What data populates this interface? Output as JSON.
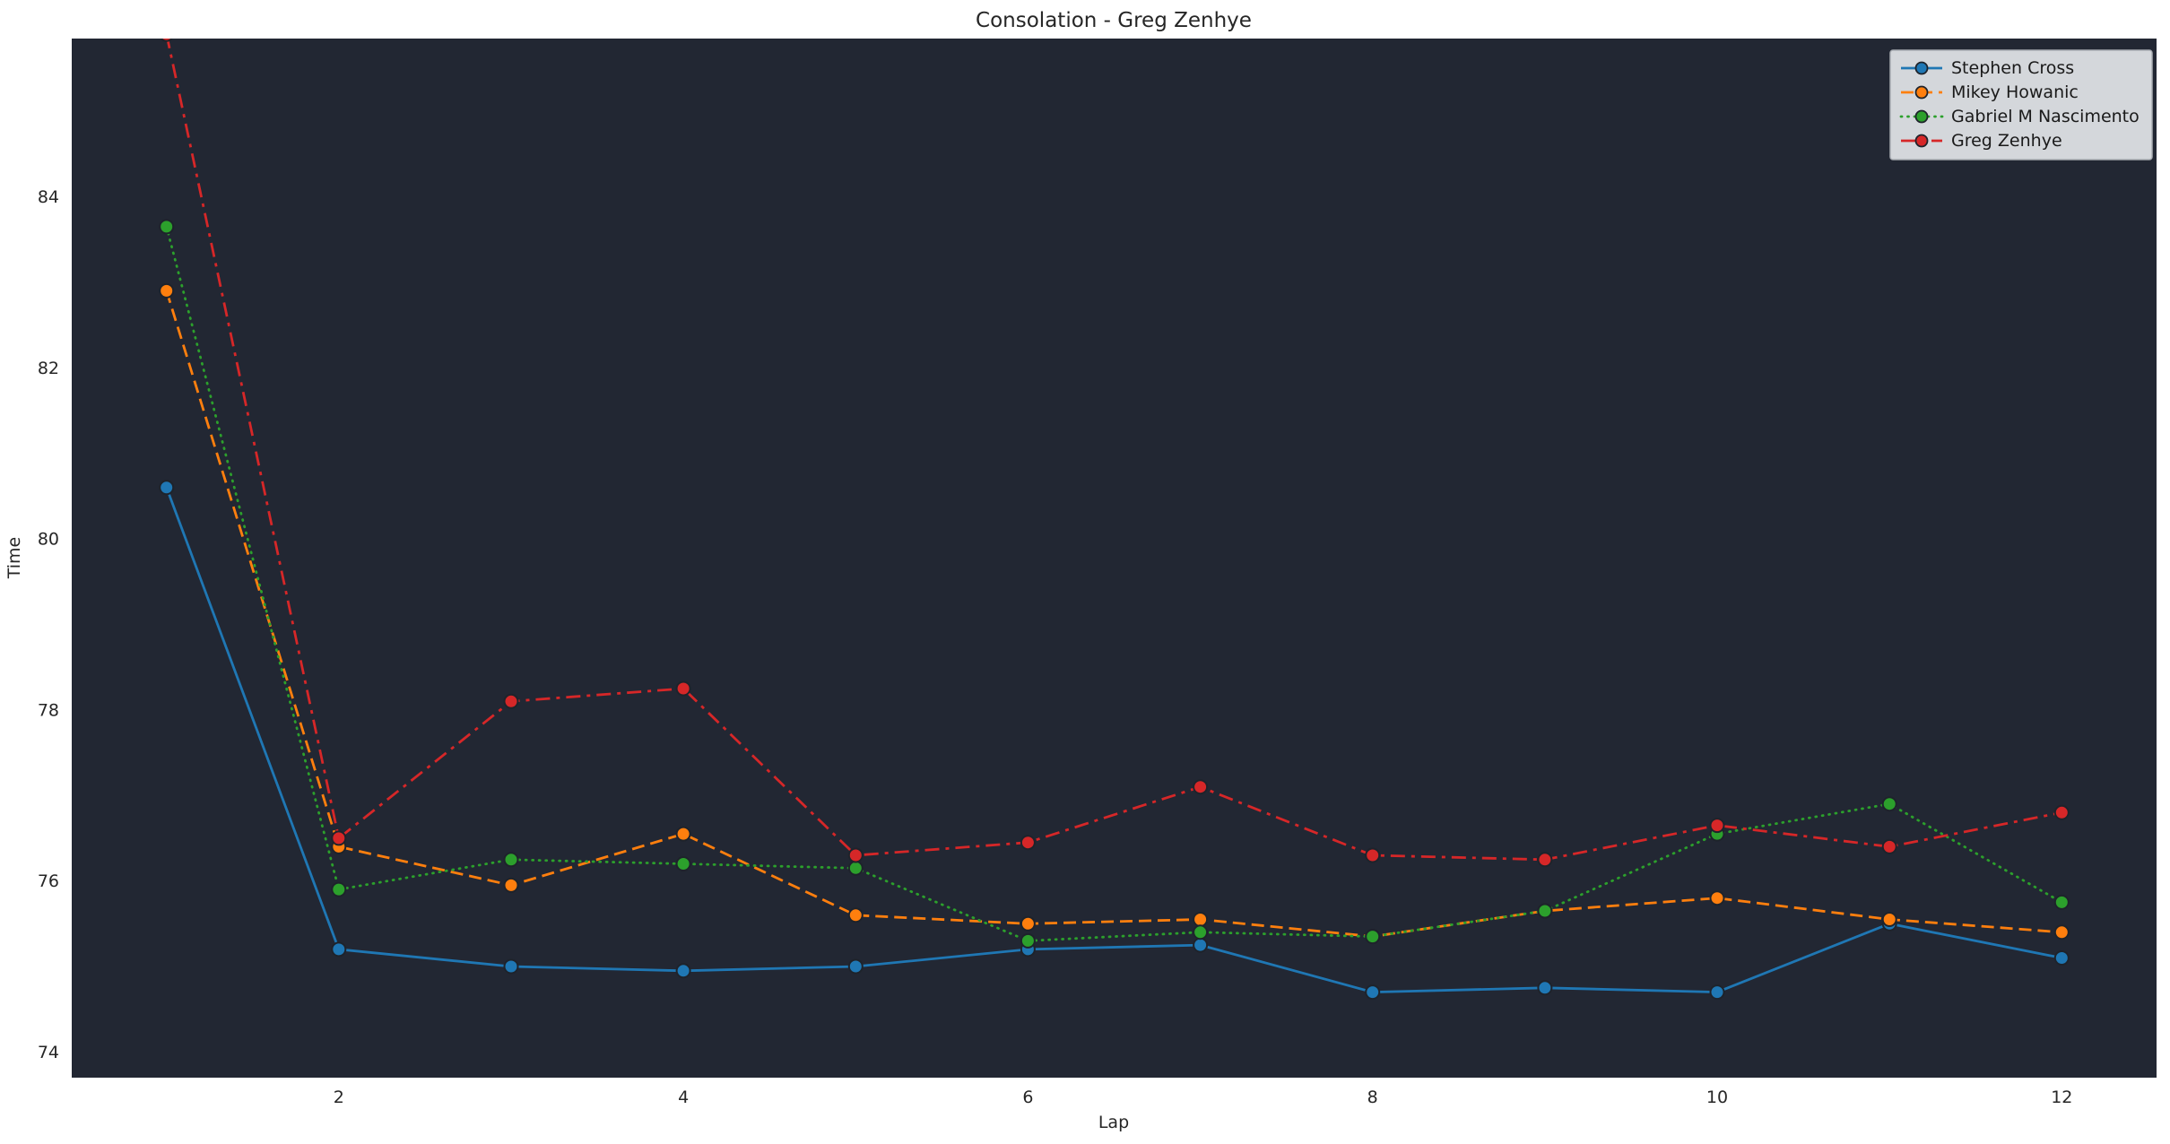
{
  "chart_data": {
    "type": "line",
    "title": "Consolation - Greg Zenhye",
    "xlabel": "Lap",
    "ylabel": "Time",
    "x": [
      1,
      2,
      3,
      4,
      5,
      6,
      7,
      8,
      9,
      10,
      11,
      12
    ],
    "xlim": [
      0.45,
      12.55
    ],
    "ylim": [
      73.7,
      85.85
    ],
    "xticks": [
      2,
      4,
      6,
      8,
      10,
      12
    ],
    "yticks": [
      74,
      76,
      78,
      80,
      82,
      84
    ],
    "grid": false,
    "legend_position": "upper right",
    "series": [
      {
        "name": "Stephen Cross",
        "color": "#1f77b4",
        "style": "solid",
        "values": [
          80.6,
          75.2,
          75.0,
          74.95,
          75.0,
          75.2,
          75.25,
          74.7,
          74.75,
          74.7,
          75.5,
          75.1
        ]
      },
      {
        "name": "Mikey Howanic",
        "color": "#ff7f0e",
        "style": "dashed",
        "values": [
          82.9,
          76.4,
          75.95,
          76.55,
          75.6,
          75.5,
          75.55,
          75.35,
          75.65,
          75.8,
          75.55,
          75.4
        ]
      },
      {
        "name": "Gabriel M Nascimento",
        "color": "#2ca02c",
        "style": "dotted",
        "values": [
          83.65,
          75.9,
          76.25,
          76.2,
          76.15,
          75.3,
          75.4,
          75.35,
          75.65,
          76.55,
          76.9,
          75.75
        ]
      },
      {
        "name": "Greg Zenhye",
        "color": "#d62728",
        "style": "dashdot",
        "values": [
          85.9,
          76.5,
          78.1,
          78.25,
          76.3,
          76.45,
          77.1,
          76.3,
          76.25,
          76.65,
          76.4,
          76.8
        ]
      }
    ]
  },
  "colors": {
    "figure_bg": "#ffffff",
    "plot_bg": "#222733",
    "text": "#262626",
    "marker_edge": "#1e232b",
    "legend_bg": "#d4d7db",
    "legend_border": "#a9adb3",
    "legend_text": "#1a1a1a"
  }
}
